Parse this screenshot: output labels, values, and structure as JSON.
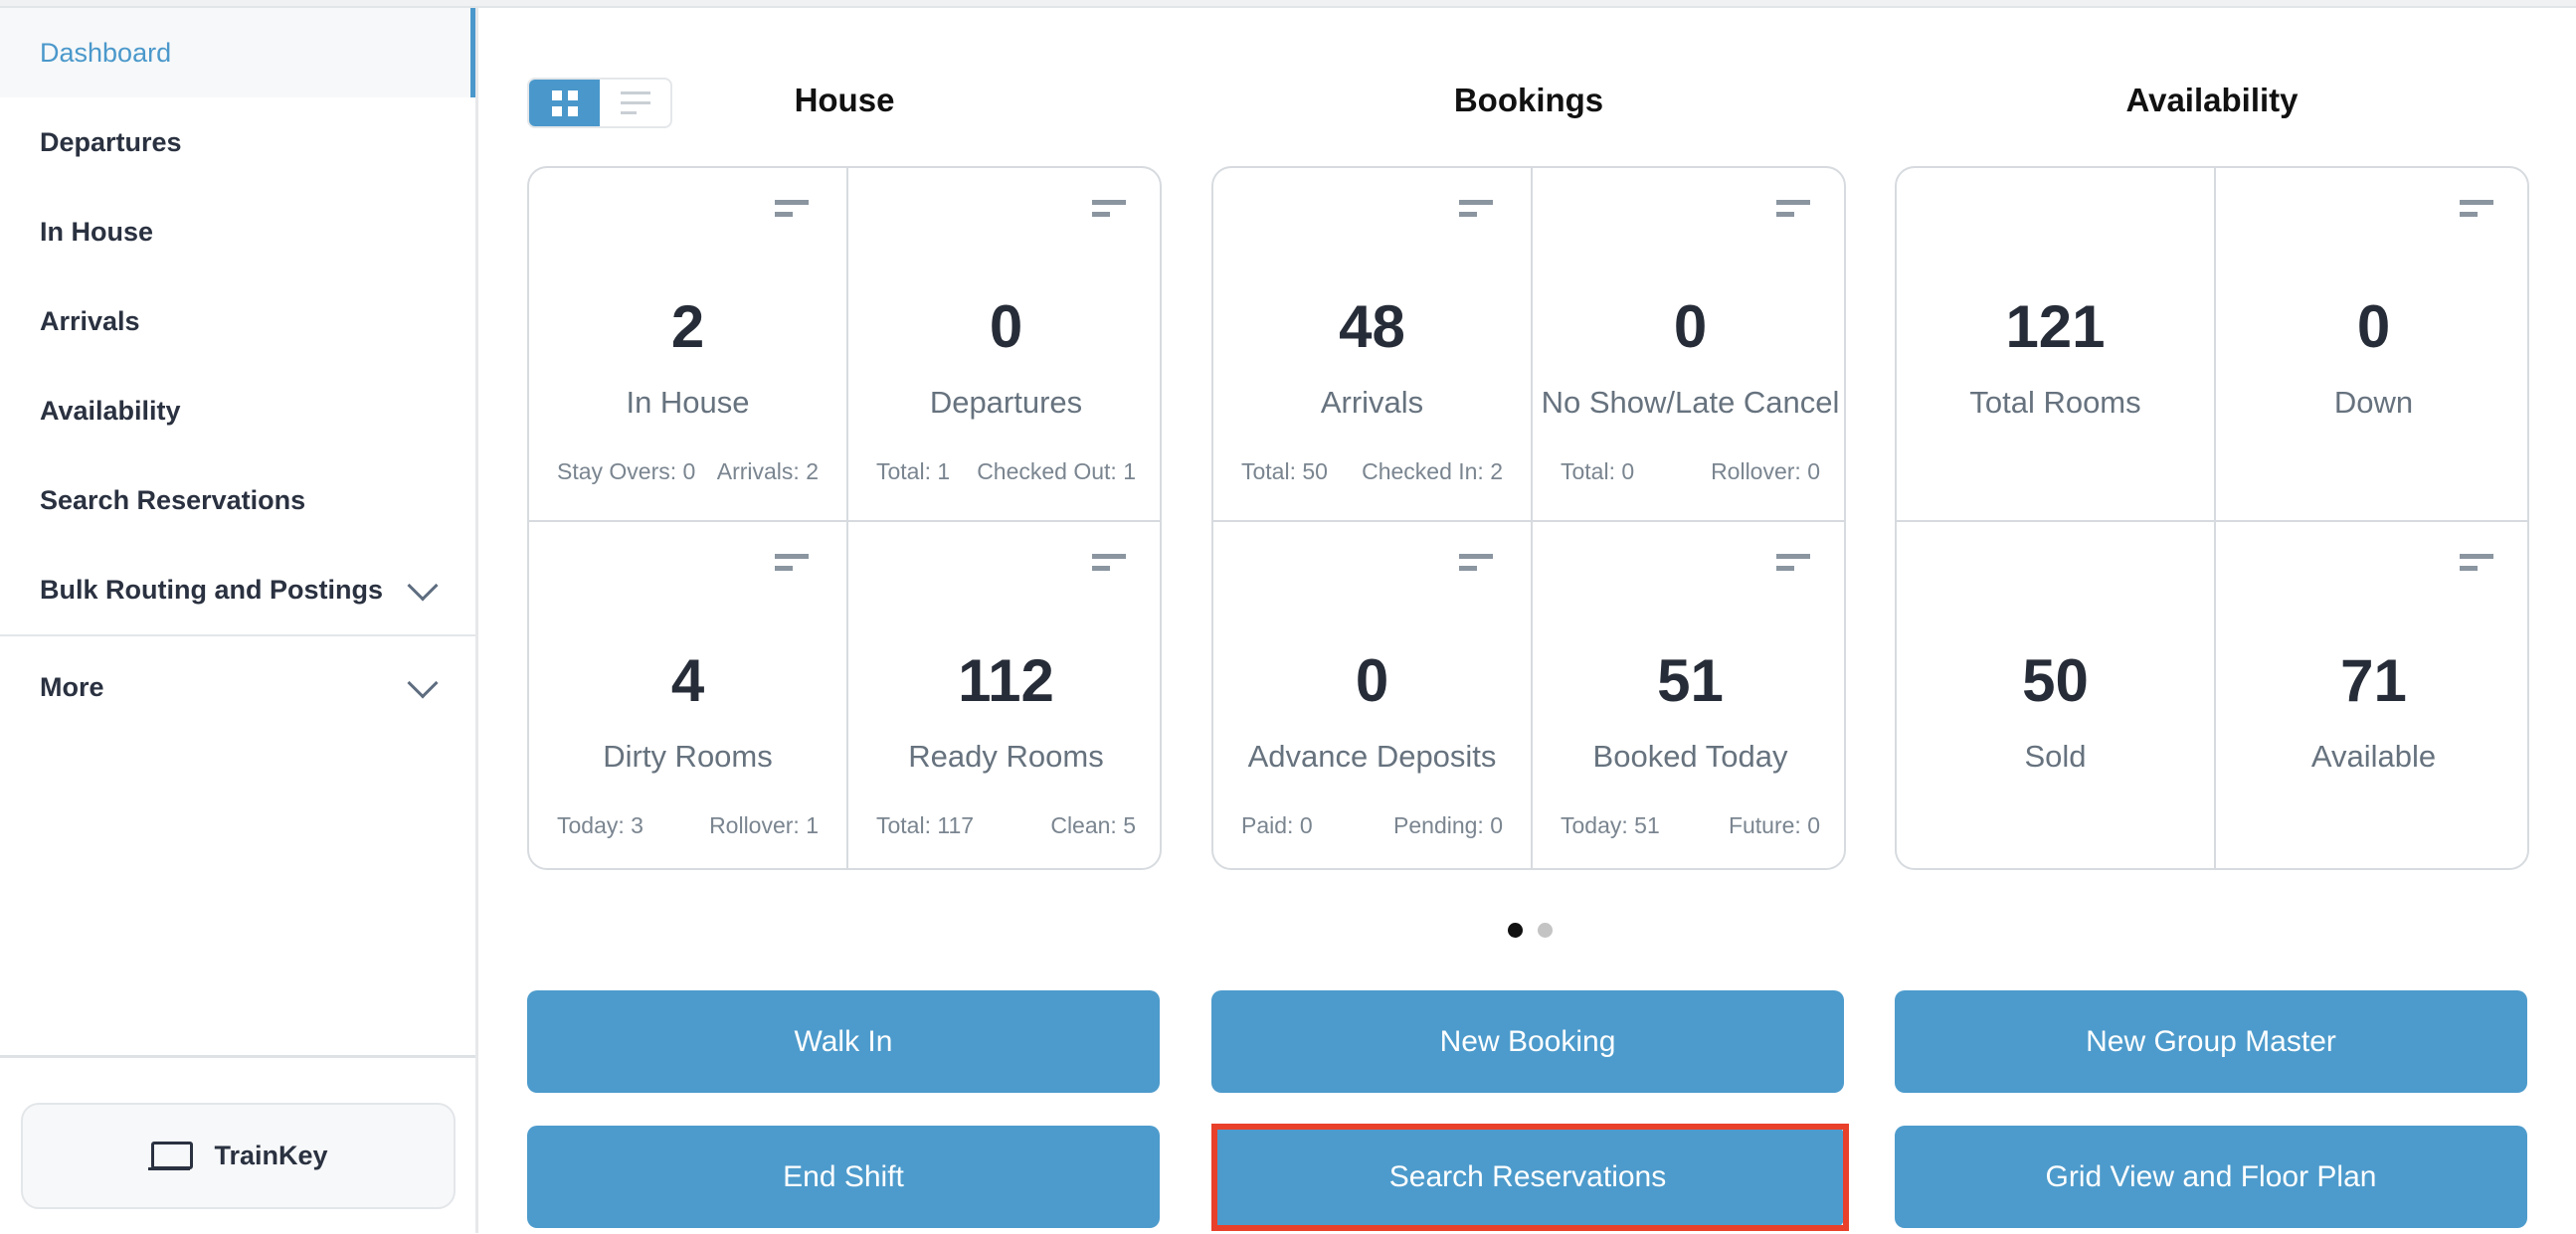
{
  "colors": {
    "accent": "#4a98cb",
    "button": "#4d9bcc",
    "highlight": "#e8402a"
  },
  "sidebar": {
    "items": [
      {
        "label": "Dashboard",
        "active": true
      },
      {
        "label": "Departures"
      },
      {
        "label": "In House"
      },
      {
        "label": "Arrivals"
      },
      {
        "label": "Availability"
      },
      {
        "label": "Search Reservations"
      },
      {
        "label": "Bulk Routing and Postings",
        "icon": "chevron-down-icon"
      },
      {
        "label": "More",
        "icon": "chevron-down-icon"
      }
    ],
    "trainkey": {
      "label": "TrainKey",
      "icon": "laptop-icon"
    }
  },
  "view_toggle": {
    "selected": "grid",
    "options": [
      "grid-icon",
      "list-icon"
    ]
  },
  "groups": [
    {
      "title": "House",
      "cells": [
        {
          "value": "2",
          "label": "In House",
          "sub": [
            "Stay Overs: 0",
            "Arrivals: 2"
          ],
          "filter": true
        },
        {
          "value": "0",
          "label": "Departures",
          "sub": [
            "Total: 1",
            "Checked Out: 1"
          ],
          "filter": true
        },
        {
          "value": "4",
          "label": "Dirty Rooms",
          "sub": [
            "Today: 3",
            "Rollover: 1"
          ],
          "filter": true
        },
        {
          "value": "112",
          "label": "Ready Rooms",
          "sub": [
            "Total: 117",
            "Clean: 5"
          ],
          "filter": true
        }
      ]
    },
    {
      "title": "Bookings",
      "cells": [
        {
          "value": "48",
          "label": "Arrivals",
          "sub": [
            "Total: 50",
            "Checked In: 2"
          ],
          "filter": true
        },
        {
          "value": "0",
          "label": "No Show/Late Cancel",
          "sub": [
            "Total: 0",
            "Rollover: 0"
          ],
          "filter": true
        },
        {
          "value": "0",
          "label": "Advance Deposits",
          "sub": [
            "Paid: 0",
            "Pending: 0"
          ],
          "filter": true
        },
        {
          "value": "51",
          "label": "Booked Today",
          "sub": [
            "Today: 51",
            "Future: 0"
          ],
          "filter": true
        }
      ]
    },
    {
      "title": "Availability",
      "cells": [
        {
          "value": "121",
          "label": "Total Rooms",
          "sub": [],
          "filter": false
        },
        {
          "value": "0",
          "label": "Down",
          "sub": [],
          "filter": true
        },
        {
          "value": "50",
          "label": "Sold",
          "sub": [],
          "filter": false
        },
        {
          "value": "71",
          "label": "Available",
          "sub": [],
          "filter": true
        }
      ]
    }
  ],
  "pager": {
    "pages": 2,
    "current": 1
  },
  "actions": [
    "Walk In",
    "New Booking",
    "New Group Master",
    "End Shift",
    "Search Reservations",
    "Grid View and Floor Plan"
  ],
  "highlighted_action": "Search Reservations"
}
